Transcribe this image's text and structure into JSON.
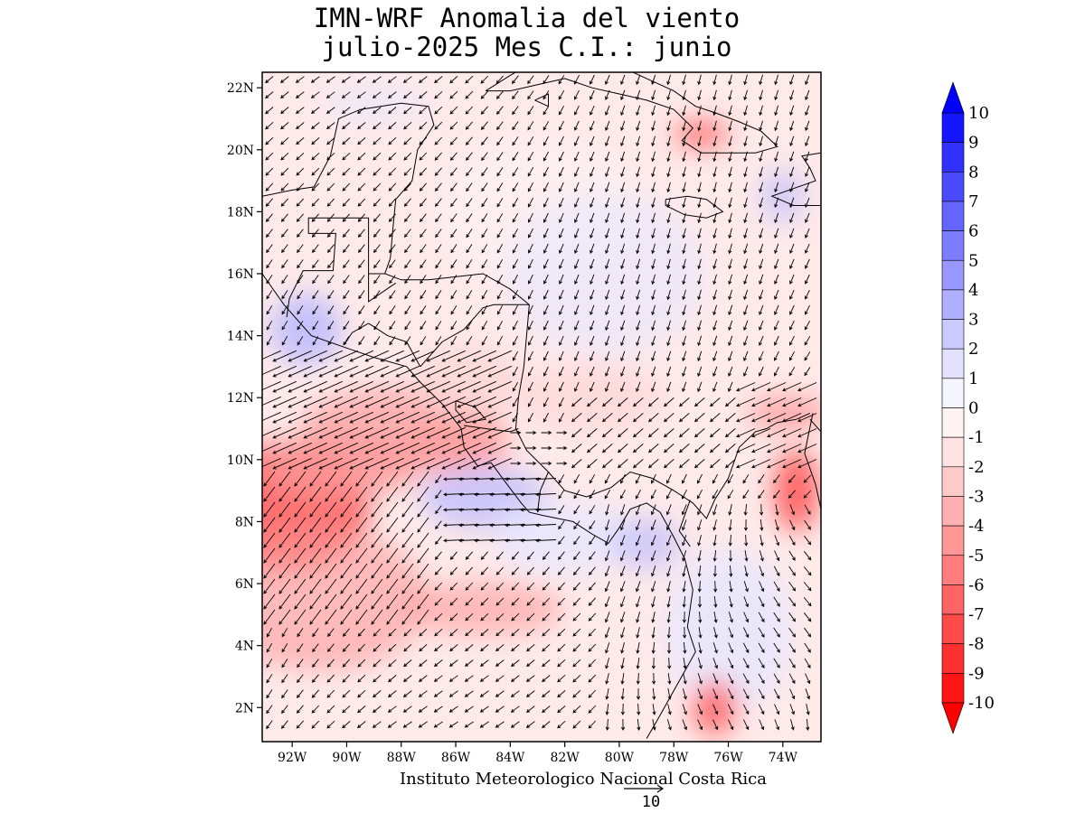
{
  "title": {
    "line1": "IMN-WRF Anomalia del viento",
    "line2": "julio-2025 Mes C.I.: junio"
  },
  "credit": "Instituto Meteorologico Nacional Costa Rica",
  "reference_vector": {
    "label": "10",
    "magnitude": 10
  },
  "axes": {
    "lat_labels": [
      "2N",
      "4N",
      "6N",
      "8N",
      "10N",
      "12N",
      "14N",
      "16N",
      "18N",
      "20N",
      "22N"
    ],
    "lat_values": [
      2,
      4,
      6,
      8,
      10,
      12,
      14,
      16,
      18,
      20,
      22
    ],
    "lon_labels": [
      "92W",
      "90W",
      "88W",
      "86W",
      "84W",
      "82W",
      "80W",
      "78W",
      "76W",
      "74W"
    ],
    "lon_values": [
      -92,
      -90,
      -88,
      -86,
      -84,
      -82,
      -80,
      -78,
      -76,
      -74
    ],
    "lon_range": [
      -93.1,
      -72.6
    ],
    "lat_range": [
      0.9,
      22.5
    ]
  },
  "colorbar": {
    "labels": [
      "10",
      "9",
      "8",
      "7",
      "6",
      "5",
      "4",
      "3",
      "2",
      "1",
      "0",
      "-1",
      "-2",
      "-3",
      "-4",
      "-5",
      "-6",
      "-7",
      "-8",
      "-9",
      "-10"
    ],
    "colors": [
      "#1515ff",
      "#3030ff",
      "#4a4aff",
      "#6464ff",
      "#7d7dff",
      "#9797ff",
      "#b0b0ff",
      "#cacaff",
      "#e3e3ff",
      "#f5f5ff",
      "#fff3f3",
      "#ffe3e3",
      "#ffcaca",
      "#ffb0b0",
      "#ff9797",
      "#ff7d7d",
      "#ff6464",
      "#ff4a4a",
      "#ff3030",
      "#ff1515"
    ],
    "top_arrow_color": "#0000ff",
    "bottom_arrow_color": "#ff0000"
  },
  "anomaly_colors": {
    "negative_strong": "#ff5a5a",
    "negative_mid": "#ff9a9a",
    "negative_light": "#ffd6d6",
    "near_zero": "#fff0f0",
    "positive_light": "#e6e6ff",
    "positive_mid": "#b8b8ff"
  }
}
